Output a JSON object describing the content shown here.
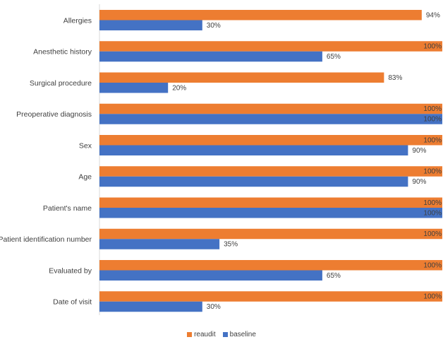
{
  "chart_data": {
    "type": "bar",
    "orientation": "horizontal",
    "categories": [
      "Allergies",
      "Anesthetic history",
      "Surgical procedure",
      "Preoperative diagnosis",
      "Sex",
      "Age",
      "Patient's name",
      "Patient identification number",
      "Evaluated by",
      "Date of visit"
    ],
    "series": [
      {
        "name": "reaudit",
        "color": "#ED7D31",
        "values": [
          94,
          100,
          83,
          100,
          100,
          100,
          100,
          100,
          100,
          100
        ]
      },
      {
        "name": "baseline",
        "color": "#4472C4",
        "values": [
          30,
          65,
          20,
          100,
          90,
          90,
          100,
          35,
          65,
          30
        ]
      }
    ],
    "value_suffix": "%",
    "xlim": [
      0,
      100
    ],
    "grid": false,
    "legend_position": "bottom-center"
  }
}
